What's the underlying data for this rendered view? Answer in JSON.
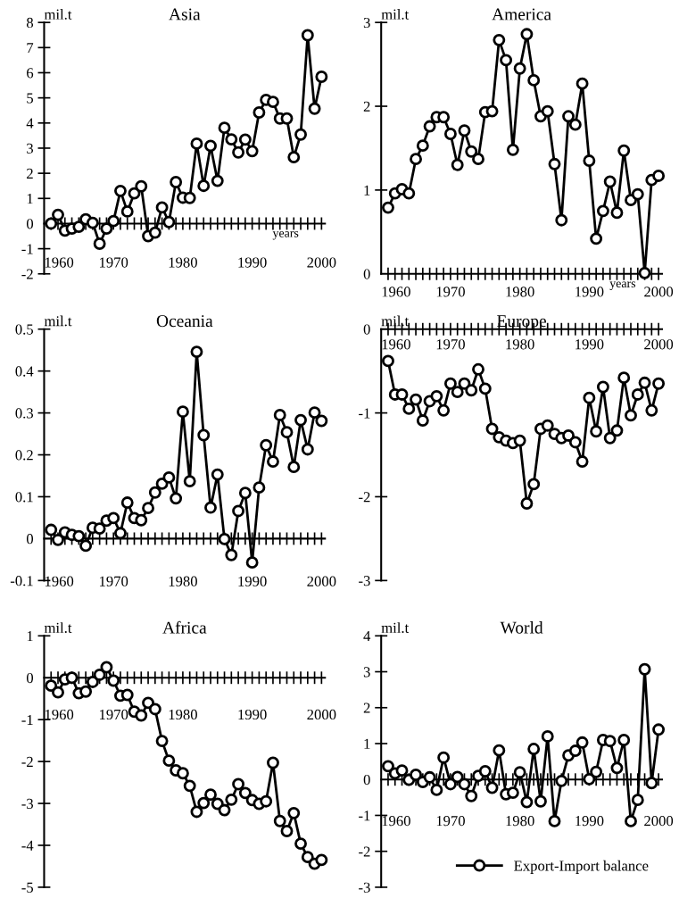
{
  "chart_data": [
    {
      "type": "line",
      "title": "Asia",
      "ylabel": "mil.t",
      "xlabel": "years",
      "x": [
        1961,
        1962,
        1963,
        1964,
        1965,
        1966,
        1967,
        1968,
        1969,
        1970,
        1971,
        1972,
        1973,
        1974,
        1975,
        1976,
        1977,
        1978,
        1979,
        1980,
        1981,
        1982,
        1983,
        1984,
        1985,
        1986,
        1987,
        1988,
        1989,
        1990,
        1991,
        1992,
        1993,
        1994,
        1995,
        1996,
        1997,
        1998,
        1999,
        2000
      ],
      "series": [
        {
          "color": "#000000",
          "values": [
            0,
            0.35,
            -0.28,
            -0.2,
            -0.13,
            0.17,
            0.03,
            -0.8,
            -0.2,
            0.1,
            1.3,
            0.48,
            1.2,
            1.48,
            -0.5,
            -0.36,
            0.64,
            0.06,
            1.65,
            1.03,
            1.02,
            3.18,
            1.5,
            3.09,
            1.7,
            3.81,
            3.35,
            2.83,
            3.34,
            2.88,
            4.42,
            4.92,
            4.84,
            4.18,
            4.18,
            2.64,
            3.54,
            7.49,
            4.57,
            5.84
          ]
        }
      ],
      "xlim": [
        1960,
        2000.5
      ],
      "xticks": [
        1960,
        1970,
        1980,
        1990,
        2000
      ],
      "ylim": [
        -2,
        8
      ],
      "yticks": [
        -2,
        -1,
        0,
        1,
        2,
        3,
        4,
        5,
        6,
        7,
        8
      ],
      "marker": "circle",
      "line_style": "solid",
      "grid": false,
      "legend": false
    },
    {
      "type": "line",
      "title": "America",
      "ylabel": "mil.t",
      "xlabel": "years",
      "x": [
        1961,
        1962,
        1963,
        1964,
        1965,
        1966,
        1967,
        1968,
        1969,
        1970,
        1971,
        1972,
        1973,
        1974,
        1975,
        1976,
        1977,
        1978,
        1979,
        1980,
        1981,
        1982,
        1983,
        1984,
        1985,
        1986,
        1987,
        1988,
        1989,
        1990,
        1991,
        1992,
        1993,
        1994,
        1995,
        1996,
        1997,
        1998,
        1999,
        2000
      ],
      "series": [
        {
          "color": "#000000",
          "values": [
            0.79,
            0.96,
            1.01,
            0.96,
            1.37,
            1.53,
            1.76,
            1.87,
            1.87,
            1.67,
            1.3,
            1.71,
            1.46,
            1.37,
            1.93,
            1.94,
            2.79,
            2.55,
            1.48,
            2.45,
            2.86,
            2.31,
            1.88,
            1.94,
            1.31,
            0.64,
            1.88,
            1.78,
            2.27,
            1.35,
            0.42,
            0.75,
            1.1,
            0.73,
            1.47,
            0.88,
            0.95,
            0.01,
            1.12,
            1.17
          ]
        }
      ],
      "xlim": [
        1960,
        2000.5
      ],
      "xticks": [
        1960,
        1970,
        1980,
        1990,
        2000
      ],
      "ylim": [
        0,
        3
      ],
      "yticks": [
        0,
        1,
        2,
        3
      ],
      "marker": "circle",
      "line_style": "solid",
      "grid": false,
      "legend": false
    },
    {
      "type": "line",
      "title": "Oceania",
      "ylabel": "mil.t",
      "x": [
        1961,
        1962,
        1963,
        1964,
        1965,
        1966,
        1967,
        1968,
        1969,
        1970,
        1971,
        1972,
        1973,
        1974,
        1975,
        1976,
        1977,
        1978,
        1979,
        1980,
        1981,
        1982,
        1983,
        1984,
        1985,
        1986,
        1987,
        1988,
        1989,
        1990,
        1991,
        1992,
        1993,
        1994,
        1995,
        1996,
        1997,
        1998,
        1999,
        2000
      ],
      "series": [
        {
          "color": "#000000",
          "values": [
            0.021,
            -0.003,
            0.015,
            0.009,
            0.006,
            -0.017,
            0.026,
            0.024,
            0.043,
            0.049,
            0.013,
            0.086,
            0.049,
            0.044,
            0.073,
            0.11,
            0.131,
            0.146,
            0.096,
            0.303,
            0.137,
            0.446,
            0.247,
            0.074,
            0.153,
            -0.001,
            -0.039,
            0.066,
            0.109,
            -0.057,
            0.122,
            0.223,
            0.184,
            0.295,
            0.254,
            0.171,
            0.283,
            0.213,
            0.301,
            0.281
          ]
        }
      ],
      "xlim": [
        1960,
        2000.5
      ],
      "xticks": [
        1960,
        1970,
        1980,
        1990,
        2000
      ],
      "ylim": [
        -0.1,
        0.5
      ],
      "yticks": [
        -0.1,
        0,
        0.1,
        0.2,
        0.3,
        0.4,
        0.5
      ],
      "marker": "circle",
      "line_style": "solid",
      "grid": false,
      "legend": false
    },
    {
      "type": "line",
      "title": "Europe",
      "ylabel": "mil.t",
      "x": [
        1961,
        1962,
        1963,
        1964,
        1965,
        1966,
        1967,
        1968,
        1969,
        1970,
        1971,
        1972,
        1973,
        1974,
        1975,
        1976,
        1977,
        1978,
        1979,
        1980,
        1981,
        1982,
        1983,
        1984,
        1985,
        1986,
        1987,
        1988,
        1989,
        1990,
        1991,
        1992,
        1993,
        1994,
        1995,
        1996,
        1997,
        1998,
        1999,
        2000
      ],
      "series": [
        {
          "color": "#000000",
          "values": [
            -0.38,
            -0.78,
            -0.78,
            -0.95,
            -0.84,
            -1.09,
            -0.86,
            -0.8,
            -0.97,
            -0.65,
            -0.75,
            -0.65,
            -0.73,
            -0.48,
            -0.71,
            -1.19,
            -1.29,
            -1.33,
            -1.36,
            -1.33,
            -2.08,
            -1.85,
            -1.19,
            -1.15,
            -1.25,
            -1.3,
            -1.27,
            -1.35,
            -1.58,
            -0.82,
            -1.22,
            -0.69,
            -1.3,
            -1.21,
            -0.58,
            -1.03,
            -0.78,
            -0.64,
            -0.97,
            -0.65
          ]
        }
      ],
      "xlim": [
        1960,
        2000.5
      ],
      "xticks": [
        1960,
        1970,
        1980,
        1990,
        2000
      ],
      "ylim": [
        -3,
        0
      ],
      "yticks": [
        -3,
        -2,
        -1,
        0
      ],
      "marker": "circle",
      "line_style": "solid",
      "grid": false,
      "legend": false
    },
    {
      "type": "line",
      "title": "Africa",
      "ylabel": "mil.t",
      "x": [
        1961,
        1962,
        1963,
        1964,
        1965,
        1966,
        1967,
        1968,
        1969,
        1970,
        1971,
        1972,
        1973,
        1974,
        1975,
        1976,
        1977,
        1978,
        1979,
        1980,
        1981,
        1982,
        1983,
        1984,
        1985,
        1986,
        1987,
        1988,
        1989,
        1990,
        1991,
        1992,
        1993,
        1994,
        1995,
        1996,
        1997,
        1998,
        1999,
        2000
      ],
      "series": [
        {
          "color": "#000000",
          "values": [
            -0.19,
            -0.35,
            -0.04,
            0,
            -0.37,
            -0.33,
            -0.1,
            0.07,
            0.25,
            -0.07,
            -0.43,
            -0.41,
            -0.81,
            -0.9,
            -0.6,
            -0.75,
            -1.51,
            -1.98,
            -2.21,
            -2.28,
            -2.58,
            -3.2,
            -2.99,
            -2.79,
            -3.01,
            -3.16,
            -2.91,
            -2.54,
            -2.75,
            -2.92,
            -3.01,
            -2.95,
            -2.03,
            -3.42,
            -3.66,
            -3.23,
            -3.96,
            -4.28,
            -4.44,
            -4.35
          ]
        }
      ],
      "xlim": [
        1960,
        2000.5
      ],
      "xticks": [
        1960,
        1970,
        1980,
        1990,
        2000
      ],
      "ylim": [
        -5,
        1
      ],
      "yticks": [
        -5,
        -4,
        -3,
        -2,
        -1,
        0,
        1
      ],
      "marker": "circle",
      "line_style": "solid",
      "grid": false,
      "legend": false
    },
    {
      "type": "line",
      "title": "World",
      "ylabel": "mil.t",
      "x": [
        1961,
        1962,
        1963,
        1964,
        1965,
        1966,
        1967,
        1968,
        1969,
        1970,
        1971,
        1972,
        1973,
        1974,
        1975,
        1976,
        1977,
        1978,
        1979,
        1980,
        1981,
        1982,
        1983,
        1984,
        1985,
        1986,
        1987,
        1988,
        1989,
        1990,
        1991,
        1992,
        1993,
        1994,
        1995,
        1996,
        1997,
        1998,
        1999,
        2000
      ],
      "series": [
        {
          "name": "Export-Import balance",
          "color": "#000000",
          "values": [
            0.37,
            0.17,
            0.25,
            -0.01,
            0.13,
            -0.07,
            0.06,
            -0.29,
            0.61,
            -0.13,
            0.07,
            -0.13,
            -0.46,
            0.1,
            0.23,
            -0.23,
            0.81,
            -0.41,
            -0.37,
            0.2,
            -0.63,
            0.85,
            -0.61,
            1.2,
            -1.16,
            -0.04,
            0.67,
            0.8,
            1.03,
            0.01,
            0.21,
            1.1,
            1.07,
            0.32,
            1.1,
            -1.16,
            -0.57,
            3.07,
            -0.1,
            1.39
          ]
        }
      ],
      "xlim": [
        1960,
        2000.5
      ],
      "xticks": [
        1960,
        1970,
        1980,
        1990,
        2000
      ],
      "ylim": [
        -3,
        4
      ],
      "yticks": [
        -3,
        -2,
        -1,
        0,
        1,
        2,
        3,
        4
      ],
      "marker": "circle",
      "line_style": "solid",
      "grid": false,
      "legend": "bottom right"
    }
  ]
}
